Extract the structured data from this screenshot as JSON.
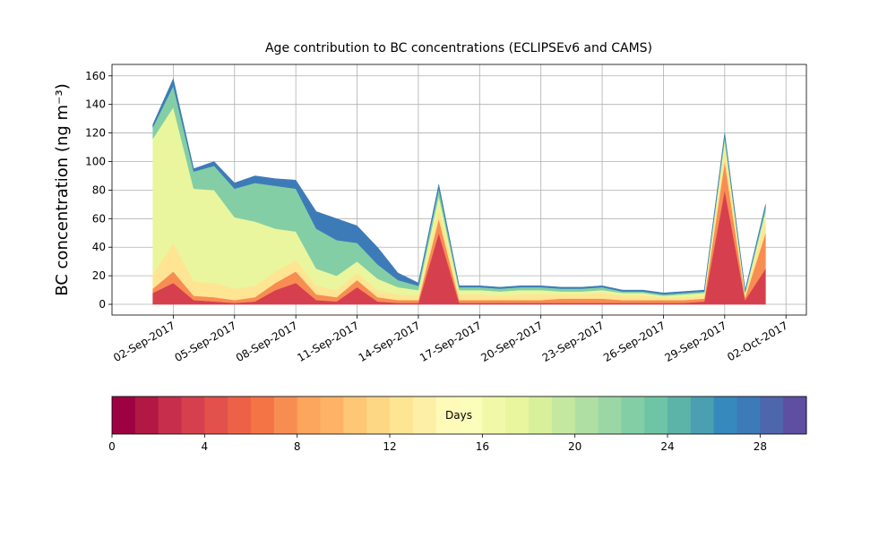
{
  "chart_data": {
    "type": "stackedarea",
    "title": "Age contribution to BC concentrations (ECLIPSEv6 and CAMS)",
    "y_label": "BC concentration (ng m⁻³)",
    "x": [
      "2017-09-01",
      "2017-09-02",
      "2017-09-03",
      "2017-09-04",
      "2017-09-05",
      "2017-09-06",
      "2017-09-07",
      "2017-09-08",
      "2017-09-09",
      "2017-09-10",
      "2017-09-11",
      "2017-09-12",
      "2017-09-13",
      "2017-09-14",
      "2017-09-15",
      "2017-09-16",
      "2017-09-17",
      "2017-09-18",
      "2017-09-19",
      "2017-09-20",
      "2017-09-21",
      "2017-09-22",
      "2017-09-23",
      "2017-09-24",
      "2017-09-25",
      "2017-09-26",
      "2017-09-27",
      "2017-09-28",
      "2017-09-29",
      "2017-09-30",
      "2017-10-01"
    ],
    "series": [
      {
        "color": "#d6404e",
        "values": [
          8,
          15,
          3,
          2,
          1,
          2,
          10,
          15,
          3,
          2,
          12,
          2,
          1,
          1,
          50,
          1,
          1,
          1,
          1,
          1,
          1,
          1,
          1,
          1,
          1,
          1,
          1,
          2,
          80,
          3,
          25
        ]
      },
      {
        "color": "#f88d52",
        "values": [
          3,
          8,
          3,
          3,
          2,
          3,
          5,
          8,
          4,
          3,
          5,
          3,
          2,
          2,
          10,
          2,
          2,
          2,
          2,
          2,
          3,
          3,
          3,
          2,
          2,
          2,
          2,
          2,
          20,
          2,
          25
        ]
      },
      {
        "color": "#fee593",
        "values": [
          10,
          20,
          10,
          10,
          8,
          8,
          8,
          8,
          6,
          5,
          5,
          5,
          4,
          3,
          8,
          4,
          4,
          3,
          4,
          4,
          3,
          3,
          4,
          3,
          3,
          2,
          2,
          2,
          10,
          2,
          10
        ]
      },
      {
        "color": "#e9f69d",
        "values": [
          95,
          95,
          65,
          65,
          50,
          45,
          30,
          20,
          12,
          10,
          8,
          8,
          5,
          4,
          8,
          3,
          3,
          3,
          3,
          3,
          2,
          2,
          2,
          2,
          2,
          1,
          2,
          2,
          5,
          1,
          5
        ]
      },
      {
        "color": "#84cea5",
        "values": [
          8,
          15,
          12,
          17,
          20,
          27,
          30,
          30,
          28,
          25,
          13,
          10,
          5,
          3,
          5,
          2,
          2,
          2,
          2,
          2,
          2,
          2,
          2,
          1,
          1,
          1,
          1,
          1,
          3,
          1,
          3
        ]
      },
      {
        "color": "#3d7bb8",
        "values": [
          2,
          5,
          2,
          3,
          4,
          5,
          5,
          6,
          12,
          15,
          12,
          12,
          5,
          2,
          3,
          1,
          1,
          1,
          1,
          1,
          1,
          1,
          1,
          1,
          1,
          1,
          1,
          1,
          2,
          1,
          2
        ]
      }
    ],
    "xlim": [
      "2017-08-30",
      "2017-10-03"
    ],
    "xticks": [
      {
        "value": "2017-09-02",
        "label": "02-Sep-2017"
      },
      {
        "value": "2017-09-05",
        "label": "05-Sep-2017"
      },
      {
        "value": "2017-09-08",
        "label": "08-Sep-2017"
      },
      {
        "value": "2017-09-11",
        "label": "11-Sep-2017"
      },
      {
        "value": "2017-09-14",
        "label": "14-Sep-2017"
      },
      {
        "value": "2017-09-17",
        "label": "17-Sep-2017"
      },
      {
        "value": "2017-09-20",
        "label": "20-Sep-2017"
      },
      {
        "value": "2017-09-23",
        "label": "23-Sep-2017"
      },
      {
        "value": "2017-09-26",
        "label": "26-Sep-2017"
      },
      {
        "value": "2017-09-29",
        "label": "29-Sep-2017"
      },
      {
        "value": "2017-10-02",
        "label": "02-Oct-2017"
      }
    ],
    "ylim": [
      -7.5,
      168
    ],
    "yticks": [
      0,
      20,
      40,
      60,
      80,
      100,
      120,
      140,
      160
    ],
    "grid": true,
    "colorbar": {
      "label": "Days",
      "lim": [
        0,
        30
      ],
      "ticks": [
        0,
        4,
        8,
        12,
        16,
        20,
        24,
        28
      ],
      "colors": [
        "#9e0142",
        "#b11844",
        "#c72e4b",
        "#d6404e",
        "#e2514b",
        "#ed6246",
        "#f57446",
        "#f88d52",
        "#fba55d",
        "#fdb365",
        "#fdc776",
        "#fed785",
        "#fee593",
        "#feefa6",
        "#fffab8",
        "#fbfdba",
        "#f1f9a9",
        "#e9f69d",
        "#d9f09b",
        "#c4e8a0",
        "#b0dfa3",
        "#9bd7a4",
        "#84cea5",
        "#6ec5a5",
        "#5cb3a8",
        "#4a9fb1",
        "#3689bc",
        "#3d7bb8",
        "#4e66ac",
        "#5e4fa2"
      ]
    }
  }
}
